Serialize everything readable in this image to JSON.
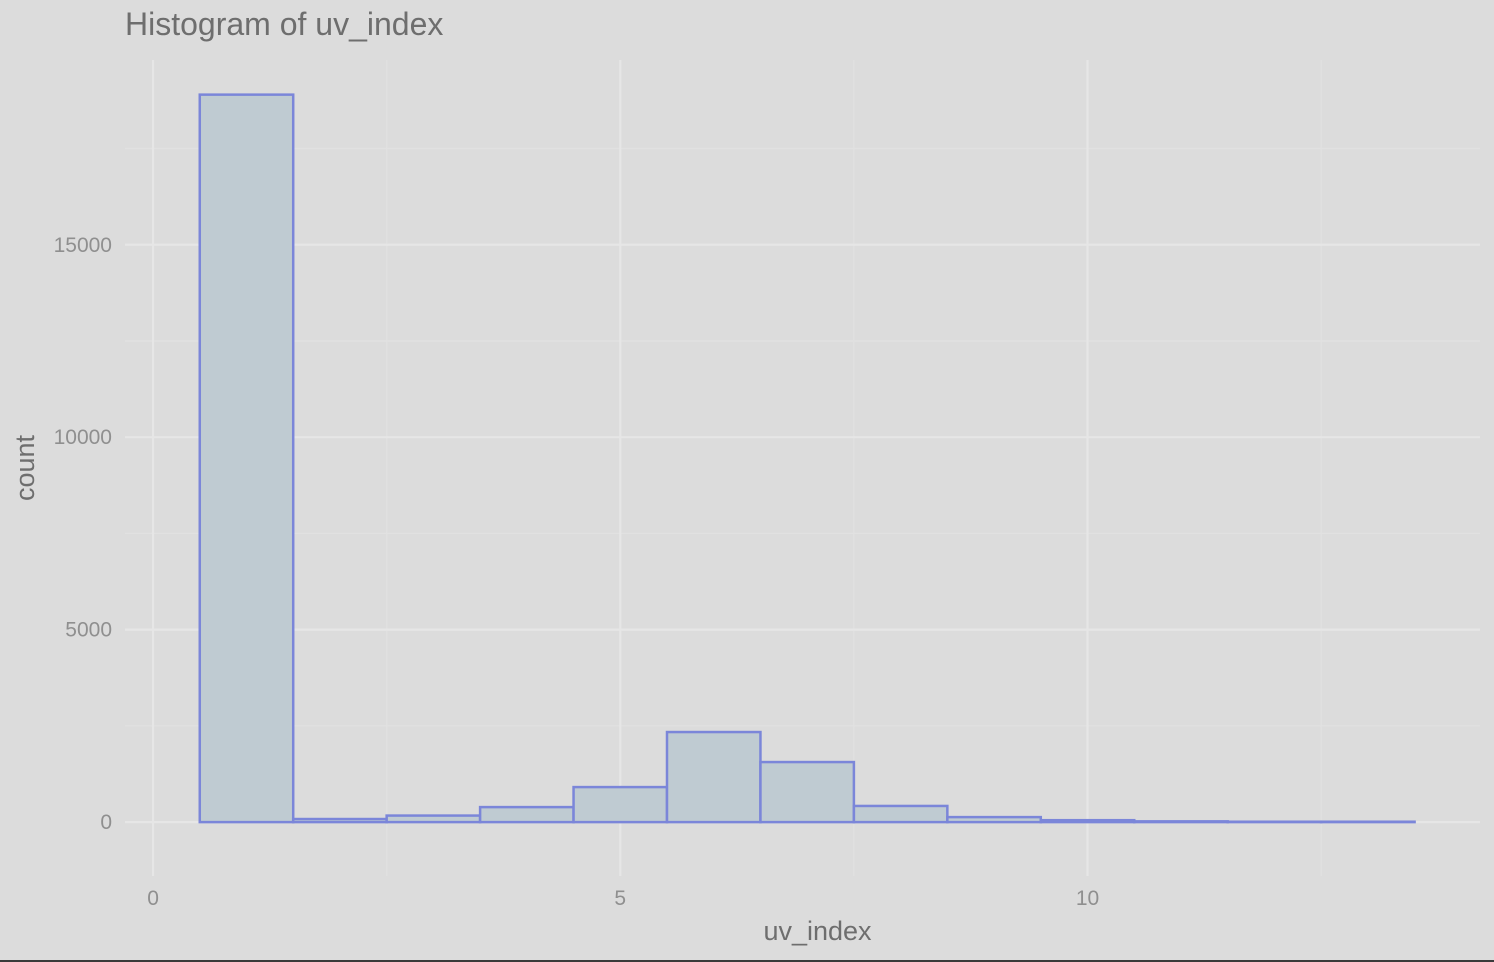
{
  "chart_data": {
    "type": "bar",
    "title": "Histogram of uv_index",
    "xlabel": "uv_index",
    "ylabel": "count",
    "xlim": [
      -0.3,
      14.2
    ],
    "ylim": [
      -1400,
      19800
    ],
    "x_ticks": [
      0,
      5,
      10
    ],
    "x_minor_ticks": [
      2.5,
      7.5,
      12.5
    ],
    "y_ticks": [
      0,
      5000,
      10000,
      15000
    ],
    "y_minor_ticks": [
      2500,
      7500,
      12500,
      17500
    ],
    "bin_width": 1,
    "bins": [
      {
        "center": 1,
        "count": 18900
      },
      {
        "center": 2,
        "count": 80
      },
      {
        "center": 3,
        "count": 170
      },
      {
        "center": 4,
        "count": 390
      },
      {
        "center": 5,
        "count": 910
      },
      {
        "center": 6,
        "count": 2340
      },
      {
        "center": 7,
        "count": 1560
      },
      {
        "center": 8,
        "count": 420
      },
      {
        "center": 9,
        "count": 130
      },
      {
        "center": 10,
        "count": 50
      },
      {
        "center": 11,
        "count": 20
      },
      {
        "center": 12,
        "count": 10
      },
      {
        "center": 13,
        "count": 10
      }
    ],
    "grid": true,
    "colors": {
      "background": "#dcdcdc",
      "grid_major": "#e6e6e6",
      "grid_minor": "#e1e1e1",
      "bar_fill": "#bfcbd2",
      "bar_stroke": "#7b86d9"
    }
  }
}
